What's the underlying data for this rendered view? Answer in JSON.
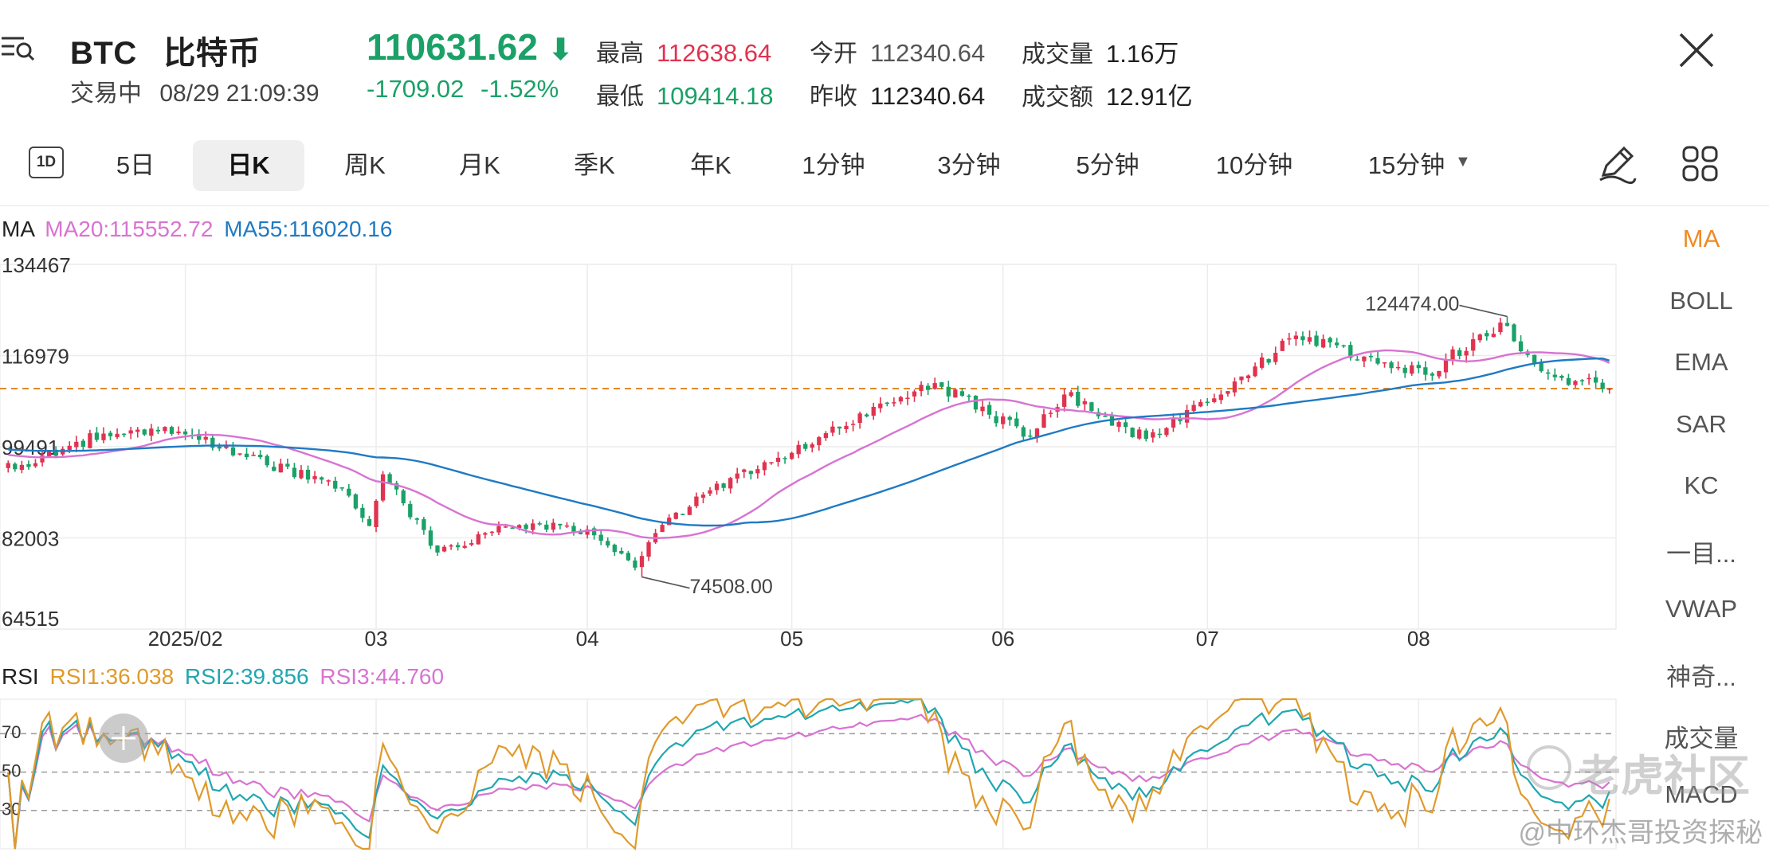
{
  "header": {
    "symbol": "BTC",
    "name": "比特币",
    "status": "交易中",
    "datetime": "08/29 21:09:39",
    "price": "110631.62",
    "change": "-1709.02",
    "change_pct": "-1.52%",
    "stats": [
      {
        "label": "最高",
        "value": "112638.64",
        "color": "#e0334f"
      },
      {
        "label": "今开",
        "value": "112340.64",
        "color": "#555555"
      },
      {
        "label": "成交量",
        "value": "1.16万",
        "color": "#1f1f1f"
      },
      {
        "label": "最低",
        "value": "109414.18",
        "color": "#1aa167"
      },
      {
        "label": "昨收",
        "value": "112340.64",
        "color": "#1f1f1f"
      },
      {
        "label": "成交额",
        "value": "12.91亿",
        "color": "#1f1f1f"
      }
    ]
  },
  "tabs": [
    "5日",
    "日K",
    "周K",
    "月K",
    "季K",
    "年K",
    "1分钟",
    "3分钟",
    "5分钟",
    "10分钟",
    "15分钟"
  ],
  "active_tab": "日K",
  "sidebar": [
    "MA",
    "BOLL",
    "EMA",
    "SAR",
    "KC",
    "一目...",
    "VWAP",
    "神奇...",
    "成交量",
    "MACD"
  ],
  "ma_legend": {
    "title": "MA",
    "ma20": "MA20:115552.72",
    "ma55": "MA55:116020.16"
  },
  "rsi_legend": {
    "title": "RSI",
    "rsi1": "RSI1:36.038",
    "rsi2": "RSI2:39.856",
    "rsi3": "RSI3:44.760"
  },
  "watermark": {
    "brand": "老虎社区",
    "author": "@中环杰哥投资探秘"
  },
  "colors": {
    "up": "#e0334f",
    "down": "#1aa167",
    "ma20": "#d873d1",
    "ma55": "#1f7ac4",
    "rsi1": "#e09a2b",
    "rsi2": "#1fa7b0",
    "rsi3": "#d873d1",
    "ref_line": "#e08a2a"
  },
  "chart_data": [
    {
      "type": "candlestick",
      "title": "BTC 比特币 日K",
      "y_ticks": [
        134467,
        116979,
        99491,
        82003,
        64515
      ],
      "ylim": [
        64515,
        134467
      ],
      "x_tick_labels": [
        "2025/02",
        "03",
        "04",
        "05",
        "06",
        "07",
        "08"
      ],
      "reference_price": 110631.62,
      "annotations": [
        {
          "label": "124474.00",
          "x_month": "08",
          "value": 124474.0
        },
        {
          "label": "74508.00",
          "x_month": "04",
          "value": 74508.0
        }
      ],
      "anchors": [
        {
          "date": "2025-01-08",
          "close": 96000
        },
        {
          "date": "2025-01-20",
          "close": 102000
        },
        {
          "date": "2025-01-31",
          "close": 102400
        },
        {
          "date": "2025-02-10",
          "close": 97500
        },
        {
          "date": "2025-02-24",
          "close": 91500
        },
        {
          "date": "2025-02-28",
          "close": 84300
        },
        {
          "date": "2025-03-02",
          "close": 94200
        },
        {
          "date": "2025-03-10",
          "close": 79200
        },
        {
          "date": "2025-03-20",
          "close": 84200
        },
        {
          "date": "2025-03-28",
          "close": 84400
        },
        {
          "date": "2025-04-02",
          "close": 82500
        },
        {
          "date": "2025-04-08",
          "close": 76300
        },
        {
          "date": "2025-04-12",
          "close": 84500
        },
        {
          "date": "2025-04-22",
          "close": 93500
        },
        {
          "date": "2025-05-08",
          "close": 103000
        },
        {
          "date": "2025-05-22",
          "close": 111700
        },
        {
          "date": "2025-06-05",
          "close": 101500
        },
        {
          "date": "2025-06-10",
          "close": 109500
        },
        {
          "date": "2025-06-22",
          "close": 101000
        },
        {
          "date": "2025-07-03",
          "close": 109500
        },
        {
          "date": "2025-07-11",
          "close": 117500
        },
        {
          "date": "2025-07-14",
          "close": 120800
        },
        {
          "date": "2025-08-02",
          "close": 113300
        },
        {
          "date": "2025-08-13",
          "close": 123300
        },
        {
          "date": "2025-08-20",
          "close": 113500
        },
        {
          "date": "2025-08-29",
          "close": 110631
        }
      ],
      "ma20_last": 115552.72,
      "ma55_last": 116020.16
    },
    {
      "type": "line",
      "title": "RSI",
      "y_ticks": [
        70,
        50,
        30
      ],
      "series": [
        {
          "name": "RSI1",
          "last": 36.038
        },
        {
          "name": "RSI2",
          "last": 39.856
        },
        {
          "name": "RSI3",
          "last": 44.76
        }
      ]
    }
  ]
}
